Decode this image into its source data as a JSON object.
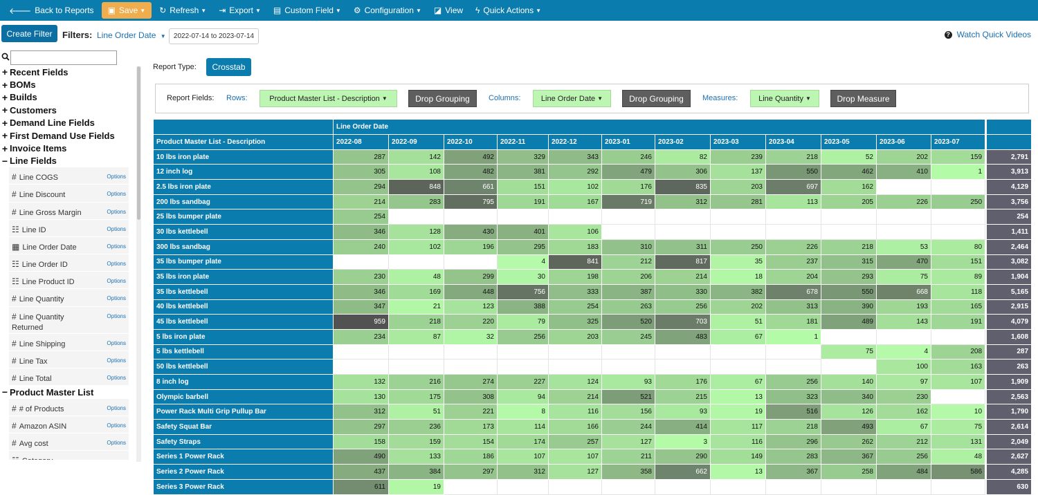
{
  "toolbar": {
    "back": {
      "label": "Back to Reports",
      "icon": "arrow-left-icon"
    },
    "save": {
      "label": "Save",
      "icon": "floppy-icon"
    },
    "refresh": {
      "label": "Refresh",
      "icon": "refresh-icon"
    },
    "export": {
      "label": "Export",
      "icon": "export-icon"
    },
    "custom_field": {
      "label": "Custom Field",
      "icon": "table-icon"
    },
    "configuration": {
      "label": "Configuration",
      "icon": "gear-icon"
    },
    "view": {
      "label": "View",
      "icon": "view-icon"
    },
    "quick_actions": {
      "label": "Quick Actions",
      "icon": "bolt-icon"
    },
    "colors": {
      "bar": "#0b7cae",
      "save": "#f0ad4e"
    }
  },
  "filters": {
    "create_label": "Create Filter",
    "label": "Filters:",
    "field": "Line Order Date",
    "range": "2022-07-14 to 2023-07-14",
    "help_link": "Watch Quick Videos"
  },
  "sidebar": {
    "search_value": "",
    "groups": [
      {
        "sign": "+",
        "label": "Recent Fields"
      },
      {
        "sign": "+",
        "label": "BOMs"
      },
      {
        "sign": "+",
        "label": "Builds"
      },
      {
        "sign": "+",
        "label": "Customers"
      },
      {
        "sign": "+",
        "label": "Demand Line Fields"
      },
      {
        "sign": "+",
        "label": "First Demand Use Fields"
      },
      {
        "sign": "+",
        "label": "Invoice Items"
      },
      {
        "sign": "−",
        "label": "Line Fields"
      }
    ],
    "line_fields": [
      {
        "icon": "#",
        "label": "Line COGS",
        "options": "Options"
      },
      {
        "icon": "#",
        "label": "Line Discount",
        "options": "Options"
      },
      {
        "icon": "#",
        "label": "Line Gross Margin",
        "options": "Options"
      },
      {
        "icon": "☷",
        "label": "Line ID",
        "options": "Options"
      },
      {
        "icon": "▦",
        "label": "Line Order Date",
        "options": "Options"
      },
      {
        "icon": "☷",
        "label": "Line Order ID",
        "options": "Options"
      },
      {
        "icon": "☷",
        "label": "Line Product ID",
        "options": "Options"
      },
      {
        "icon": "#",
        "label": "Line Quantity",
        "options": "Options"
      },
      {
        "icon": "#",
        "label": "Line Quantity Returned",
        "options": "Options"
      },
      {
        "icon": "#",
        "label": "Line Shipping",
        "options": "Options"
      },
      {
        "icon": "#",
        "label": "Line Tax",
        "options": "Options"
      },
      {
        "icon": "#",
        "label": "Line Total",
        "options": "Options"
      }
    ],
    "pml_group": {
      "sign": "−",
      "label": "Product Master List"
    },
    "pml_fields": [
      {
        "icon": "#",
        "label": "# of Products",
        "options": "Options"
      },
      {
        "icon": "#",
        "label": "Amazon ASIN",
        "options": "Options"
      },
      {
        "icon": "#",
        "label": "Avg cost",
        "options": "Options"
      },
      {
        "icon": "☷",
        "label": "Category",
        "options": ""
      }
    ]
  },
  "report": {
    "type_label": "Report Type:",
    "type_value": "Crosstab",
    "fields_label": "Report Fields:",
    "rows_label": "Rows:",
    "rows_field": "Product Master List - Description",
    "columns_label": "Columns:",
    "columns_field": "Line Order Date",
    "measures_label": "Measures:",
    "measures_field": "Line Quantity",
    "drop_grouping": "Drop Grouping",
    "drop_measure": "Drop Measure"
  },
  "crosstab": {
    "col_group_label": "Line Order Date",
    "row_header": "Product Master List - Description",
    "columns": [
      "2022-08",
      "2022-09",
      "2022-10",
      "2022-11",
      "2022-12",
      "2023-01",
      "2023-02",
      "2023-03",
      "2023-04",
      "2023-05",
      "2023-06",
      "2023-07"
    ],
    "colors": {
      "header": "#0b7cae",
      "total": "#5f5f6e",
      "low": "#b4fba8",
      "high": "#525252"
    },
    "rows": [
      {
        "label": "10 lbs iron plate",
        "values": [
          "287",
          "142",
          "492",
          "329",
          "343",
          "246",
          "82",
          "239",
          "218",
          "52",
          "202",
          "159"
        ],
        "total": "2,791"
      },
      {
        "label": "12 inch log",
        "values": [
          "305",
          "108",
          "482",
          "381",
          "292",
          "479",
          "306",
          "137",
          "550",
          "462",
          "410",
          "1"
        ],
        "total": "3,913"
      },
      {
        "label": "2.5 lbs iron plate",
        "values": [
          "294",
          "848",
          "661",
          "151",
          "102",
          "176",
          "835",
          "203",
          "697",
          "162",
          "",
          ""
        ],
        "total": "4,129"
      },
      {
        "label": "200 lbs sandbag",
        "values": [
          "214",
          "283",
          "795",
          "191",
          "167",
          "719",
          "312",
          "281",
          "113",
          "205",
          "226",
          "250"
        ],
        "total": "3,756"
      },
      {
        "label": "25 lbs bumper plate",
        "values": [
          "254",
          "",
          "",
          "",
          "",
          "",
          "",
          "",
          "",
          "",
          "",
          ""
        ],
        "total": "254"
      },
      {
        "label": "30 lbs kettlebell",
        "values": [
          "346",
          "128",
          "430",
          "401",
          "106",
          "",
          "",
          "",
          "",
          "",
          "",
          ""
        ],
        "total": "1,411"
      },
      {
        "label": "300 lbs sandbag",
        "values": [
          "240",
          "102",
          "196",
          "295",
          "183",
          "310",
          "311",
          "250",
          "226",
          "218",
          "53",
          "80"
        ],
        "total": "2,464"
      },
      {
        "label": "35 lbs bumper plate",
        "values": [
          "",
          "",
          "",
          "4",
          "841",
          "212",
          "817",
          "35",
          "237",
          "315",
          "470",
          "151"
        ],
        "total": "3,082"
      },
      {
        "label": "35 lbs iron plate",
        "values": [
          "230",
          "48",
          "299",
          "30",
          "198",
          "206",
          "214",
          "18",
          "204",
          "293",
          "75",
          "89"
        ],
        "total": "1,904"
      },
      {
        "label": "35 lbs kettlebell",
        "values": [
          "346",
          "169",
          "448",
          "756",
          "333",
          "387",
          "330",
          "382",
          "678",
          "550",
          "668",
          "118"
        ],
        "total": "5,165"
      },
      {
        "label": "40 lbs kettlebell",
        "values": [
          "347",
          "21",
          "123",
          "388",
          "254",
          "263",
          "256",
          "202",
          "313",
          "390",
          "193",
          "165"
        ],
        "total": "2,915"
      },
      {
        "label": "45 lbs kettlebell",
        "values": [
          "959",
          "218",
          "220",
          "79",
          "325",
          "520",
          "703",
          "51",
          "181",
          "489",
          "143",
          "191"
        ],
        "total": "4,079"
      },
      {
        "label": "5 lbs iron plate",
        "values": [
          "234",
          "87",
          "32",
          "256",
          "203",
          "245",
          "483",
          "67",
          "1",
          "",
          "",
          ""
        ],
        "total": "1,608"
      },
      {
        "label": "5 lbs kettlebell",
        "values": [
          "",
          "",
          "",
          "",
          "",
          "",
          "",
          "",
          "",
          "75",
          "4",
          "208"
        ],
        "total": "287"
      },
      {
        "label": "50 lbs kettlebell",
        "values": [
          "",
          "",
          "",
          "",
          "",
          "",
          "",
          "",
          "",
          "",
          "100",
          "163"
        ],
        "total": "263"
      },
      {
        "label": "8 inch log",
        "values": [
          "132",
          "216",
          "274",
          "227",
          "124",
          "93",
          "176",
          "67",
          "256",
          "140",
          "97",
          "107"
        ],
        "total": "1,909"
      },
      {
        "label": "Olympic barbell",
        "values": [
          "130",
          "175",
          "308",
          "94",
          "214",
          "521",
          "215",
          "13",
          "323",
          "340",
          "230",
          ""
        ],
        "total": "2,563"
      },
      {
        "label": "Power Rack Multi Grip Pullup Bar",
        "values": [
          "312",
          "51",
          "221",
          "8",
          "116",
          "156",
          "93",
          "19",
          "516",
          "126",
          "162",
          "10"
        ],
        "total": "1,790"
      },
      {
        "label": "Safety Squat Bar",
        "values": [
          "297",
          "236",
          "173",
          "114",
          "166",
          "244",
          "414",
          "117",
          "218",
          "493",
          "67",
          "75"
        ],
        "total": "2,614"
      },
      {
        "label": "Safety Straps",
        "values": [
          "158",
          "159",
          "154",
          "174",
          "257",
          "127",
          "3",
          "116",
          "296",
          "262",
          "212",
          "131"
        ],
        "total": "2,049"
      },
      {
        "label": "Series 1 Power Rack",
        "values": [
          "490",
          "133",
          "186",
          "107",
          "107",
          "211",
          "290",
          "149",
          "283",
          "367",
          "256",
          "48"
        ],
        "total": "2,627"
      },
      {
        "label": "Series 2 Power Rack",
        "values": [
          "437",
          "384",
          "297",
          "312",
          "127",
          "358",
          "662",
          "13",
          "367",
          "258",
          "484",
          "586"
        ],
        "total": "4,285"
      },
      {
        "label": "Series 3 Power Rack",
        "values": [
          "611",
          "19",
          "",
          "",
          "",
          "",
          "",
          "",
          "",
          "",
          "",
          ""
        ],
        "total": "630"
      }
    ]
  }
}
